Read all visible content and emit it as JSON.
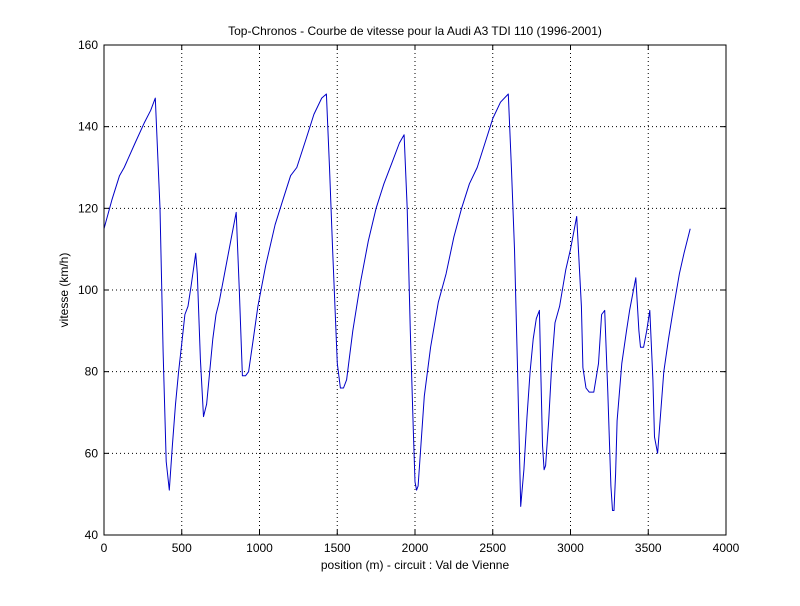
{
  "chart_data": {
    "type": "line",
    "title": "Top-Chronos - Courbe de vitesse pour la Audi A3 TDI 110 (1996-2001)",
    "xlabel": "position (m) - circuit : Val de Vienne",
    "ylabel": "vitesse (km/h)",
    "xlim": [
      0,
      4000
    ],
    "ylim": [
      40,
      160
    ],
    "xticks": [
      0,
      500,
      1000,
      1500,
      2000,
      2500,
      3000,
      3500,
      4000
    ],
    "yticks": [
      40,
      60,
      80,
      100,
      120,
      140,
      160
    ],
    "grid": true,
    "line_color": "#0000c8",
    "series": [
      {
        "x": [
          0,
          50,
          100,
          130,
          200,
          260,
          300,
          330,
          360,
          380,
          400,
          420,
          440,
          460,
          480,
          500,
          520,
          540,
          560,
          590,
          600,
          620,
          640,
          660,
          680,
          700,
          720,
          740,
          780,
          820,
          850,
          870,
          890,
          910,
          930,
          960,
          990,
          1040,
          1100,
          1150,
          1200,
          1240,
          1300,
          1350,
          1400,
          1430,
          1450,
          1470,
          1500,
          1520,
          1540,
          1560,
          1580,
          1600,
          1650,
          1700,
          1750,
          1800,
          1850,
          1900,
          1930,
          1950,
          1970,
          1990,
          2000,
          2010,
          2020,
          2040,
          2060,
          2100,
          2150,
          2200,
          2250,
          2300,
          2350,
          2400,
          2450,
          2500,
          2550,
          2600,
          2620,
          2640,
          2660,
          2680,
          2700,
          2720,
          2740,
          2760,
          2780,
          2800,
          2820,
          2830,
          2840,
          2860,
          2880,
          2900,
          2930,
          2970,
          3000,
          3040,
          3070,
          3080,
          3100,
          3120,
          3150,
          3180,
          3200,
          3220,
          3240,
          3260,
          3270,
          3280,
          3290,
          3300,
          3330,
          3360,
          3380,
          3400,
          3420,
          3440,
          3450,
          3470,
          3490,
          3510,
          3530,
          3540,
          3560,
          3580,
          3600,
          3630,
          3660,
          3700,
          3730,
          3750,
          3770
        ],
        "y": [
          115,
          122,
          128,
          130,
          136,
          141,
          144,
          147,
          120,
          85,
          58,
          51,
          62,
          72,
          80,
          87,
          94,
          96,
          101,
          109,
          104,
          83,
          69,
          72,
          80,
          88,
          94,
          97,
          105,
          113,
          119,
          100,
          79,
          79,
          80,
          88,
          96,
          106,
          116,
          122,
          128,
          130,
          137,
          143,
          147,
          148,
          130,
          110,
          82,
          76,
          76,
          78,
          84,
          90,
          102,
          112,
          120,
          126,
          131,
          136,
          138,
          120,
          90,
          65,
          53,
          51,
          52,
          63,
          74,
          86,
          97,
          104,
          113,
          120,
          126,
          130,
          136,
          142,
          146,
          148,
          130,
          110,
          80,
          47,
          56,
          69,
          80,
          88,
          93,
          95,
          62,
          56,
          57,
          68,
          82,
          92,
          96,
          105,
          110,
          118,
          96,
          81,
          76,
          75,
          75,
          82,
          94,
          95,
          75,
          52,
          46,
          46,
          55,
          68,
          82,
          90,
          95,
          99,
          103,
          90,
          86,
          86,
          90,
          95,
          78,
          64,
          60,
          70,
          80,
          88,
          95,
          104,
          109,
          112,
          115
        ]
      }
    ]
  }
}
